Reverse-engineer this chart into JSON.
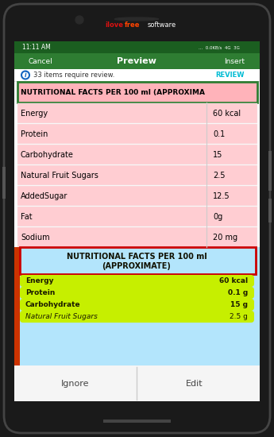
{
  "phone_bg": "#1a1a1a",
  "screen_bg": "#ffffff",
  "header_bar_color": "#2e7d32",
  "status_bar_color": "#1b5e20",
  "time_text": "11:11 AM",
  "status_right": "...  0.0KB/s  4G  3G",
  "nav_cancel": "Cancel",
  "nav_preview": "Preview",
  "nav_insert": "Insert",
  "review_text": "33 items require review.",
  "review_link": "REVIEW",
  "review_link_color": "#00bcd4",
  "info_icon_color": "#1565c0",
  "table_header": "NUTRITIONAL FACTS PER 100 ml (APPROXIMA",
  "table_header_bg": "#ffb3ba",
  "table_header_border": "#2e7d32",
  "table_rows": [
    {
      "label": "Energy",
      "value": "60 kcal"
    },
    {
      "label": "Protein",
      "value": "0.1"
    },
    {
      "label": "Carbohydrate",
      "value": "15"
    },
    {
      "label": "Natural Fruit Sugars",
      "value": "2.5"
    },
    {
      "label": "AddedSugar",
      "value": "12.5"
    },
    {
      "label": "Fat",
      "value": "0g"
    },
    {
      "label": "Sodium",
      "value": "20 mg"
    }
  ],
  "table_row_bg": "#ffcdd2",
  "table_text_color": "#000000",
  "lower_section_bg": "#b3e5fc",
  "lower_header_line1": "NUTRITIONAL FACTS PER 100 ml",
  "lower_header_line2": "(APPROXIMATE)",
  "lower_header_border": "#cc0000",
  "lower_rows": [
    {
      "label": "Energy",
      "value": "60 kcal",
      "italic": false
    },
    {
      "label": "Protein",
      "value": "0.1 g",
      "italic": false
    },
    {
      "label": "Carbohydrate",
      "value": "15 g",
      "italic": false
    },
    {
      "label": "Natural Fruit Sugars",
      "value": "2.5 g",
      "italic": true
    }
  ],
  "lower_row_bg": "#c6ef00",
  "lower_text_color": "#1a1a00",
  "red_bar_color": "#cc3300",
  "bottom_bar_bg": "#f5f5f5",
  "bottom_ignore": "Ignore",
  "bottom_edit": "Edit",
  "divider_color": "#cccccc",
  "brand_ilove": "ilove",
  "brand_free": "free",
  "brand_rest": "software",
  "brand_color_main": "#dd1111",
  "brand_color_free": "#ff4400",
  "brand_color_rest": "#ffffff"
}
